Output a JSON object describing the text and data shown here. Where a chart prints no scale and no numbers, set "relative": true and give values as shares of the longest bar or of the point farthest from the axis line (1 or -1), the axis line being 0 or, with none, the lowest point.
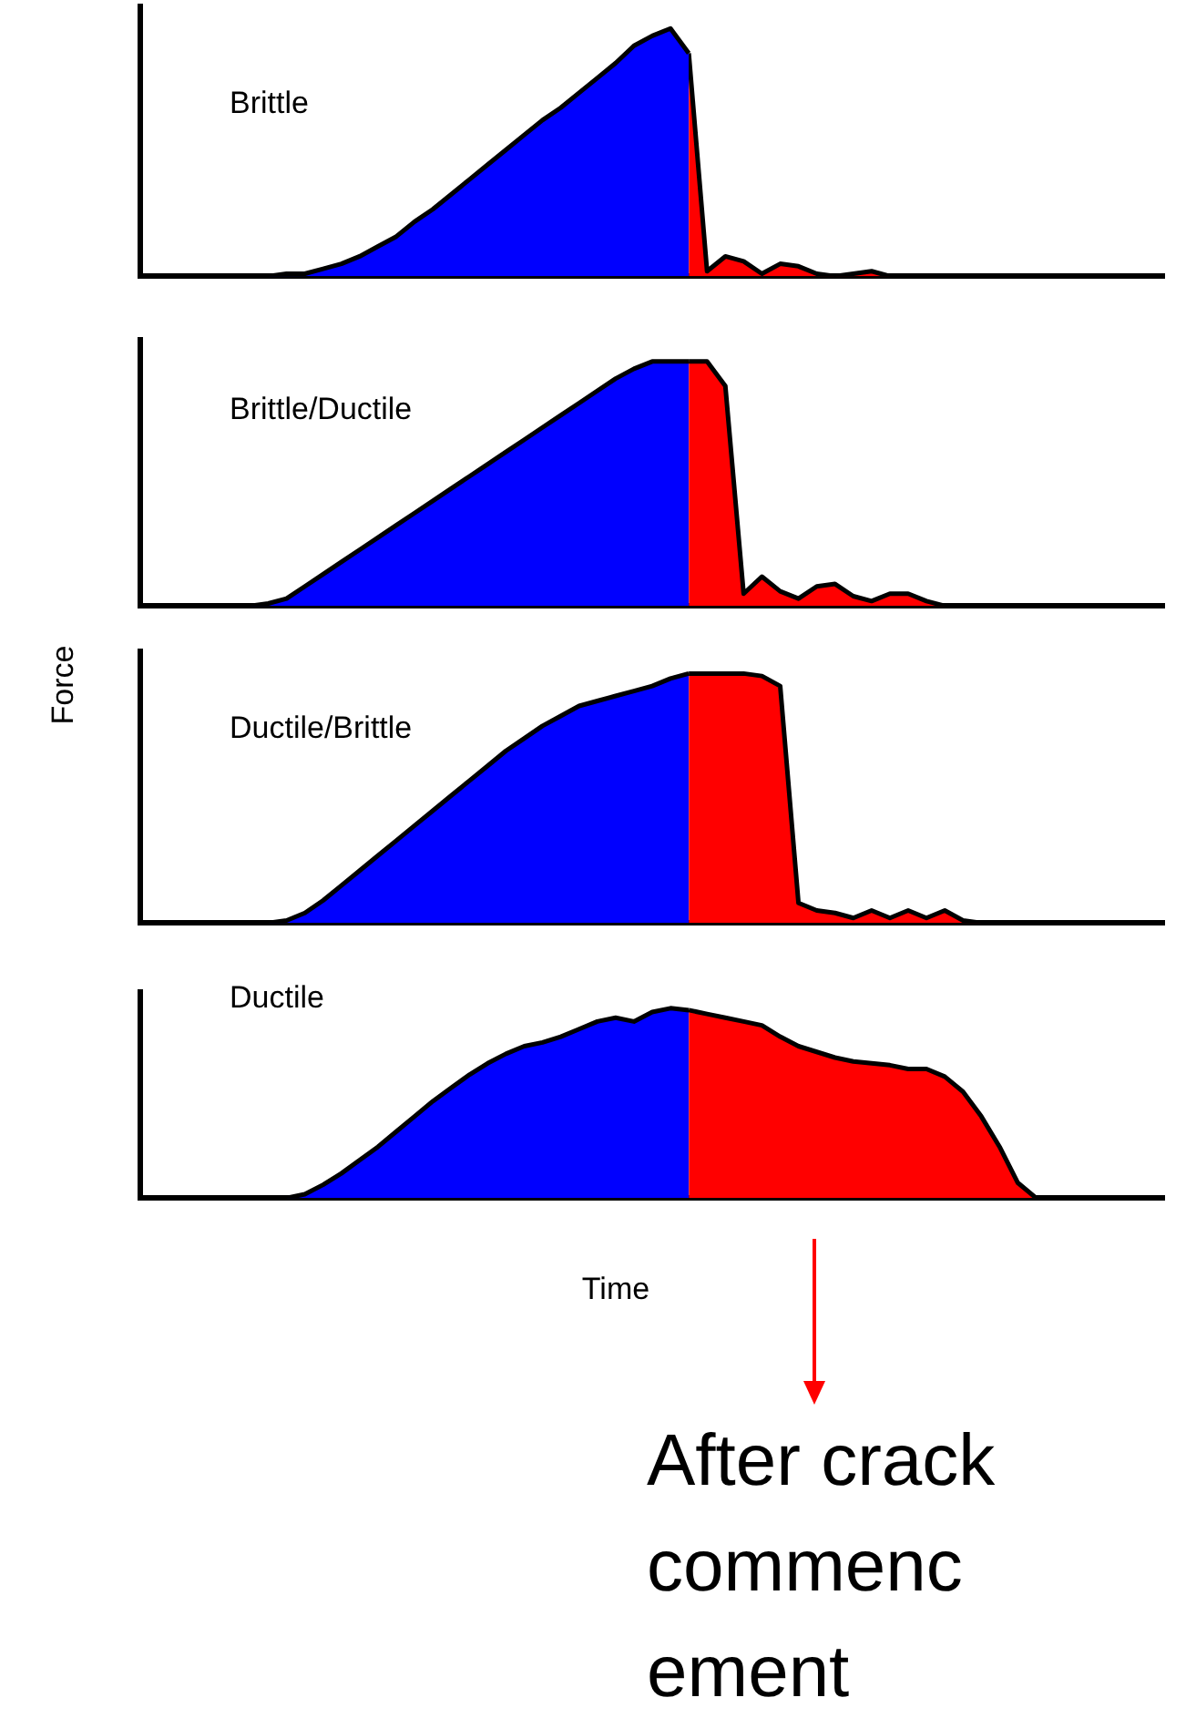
{
  "chart_data": [
    {
      "type": "area",
      "title": "Brittle",
      "relative": true,
      "marker": "none",
      "categories": [
        null,
        null,
        null,
        null,
        null,
        null,
        null,
        null,
        null,
        null,
        null,
        null,
        null,
        null,
        null,
        null,
        null,
        null,
        null,
        null,
        null,
        null,
        null,
        null,
        null,
        null,
        null,
        null,
        null,
        null,
        null,
        null,
        null,
        null,
        null,
        null,
        null,
        null,
        null,
        null,
        null,
        null,
        null,
        null,
        null,
        null,
        null,
        null,
        null,
        null,
        null,
        null,
        null,
        null,
        null,
        null,
        null
      ],
      "series": [
        {
          "color": "#0000ff",
          "values": [
            0,
            0,
            0,
            0,
            0,
            0,
            0,
            0,
            0.01,
            0.01,
            0.03,
            0.05,
            0.08,
            0.12,
            0.16,
            0.22,
            0.27,
            0.33,
            0.39,
            0.45,
            0.51,
            0.57,
            0.63,
            0.68,
            0.74,
            0.8,
            0.86,
            0.93,
            0.97,
            1,
            0.9,
            null,
            null,
            null,
            null,
            null,
            null,
            null,
            null,
            null,
            null,
            null,
            null,
            null,
            null,
            null,
            null,
            null,
            null,
            null,
            null,
            null,
            null,
            null,
            null,
            null,
            null
          ]
        },
        {
          "color": "#ff0000",
          "values": [
            null,
            null,
            null,
            null,
            null,
            null,
            null,
            null,
            null,
            null,
            null,
            null,
            null,
            null,
            null,
            null,
            null,
            null,
            null,
            null,
            null,
            null,
            null,
            null,
            null,
            null,
            null,
            null,
            null,
            null,
            0.9,
            0.02,
            0.08,
            0.06,
            0.01,
            0.05,
            0.04,
            0.01,
            0,
            0.01,
            0.02,
            0,
            0,
            0,
            0,
            0,
            0,
            0,
            0,
            0,
            0,
            0,
            0,
            0,
            0,
            0,
            0
          ]
        }
      ]
    },
    {
      "type": "area",
      "title": "Brittle/Ductile",
      "relative": true,
      "marker": "none",
      "categories": [
        null,
        null,
        null,
        null,
        null,
        null,
        null,
        null,
        null,
        null,
        null,
        null,
        null,
        null,
        null,
        null,
        null,
        null,
        null,
        null,
        null,
        null,
        null,
        null,
        null,
        null,
        null,
        null,
        null,
        null,
        null,
        null,
        null,
        null,
        null,
        null,
        null,
        null,
        null,
        null,
        null,
        null,
        null,
        null,
        null,
        null,
        null,
        null,
        null,
        null,
        null,
        null,
        null,
        null,
        null,
        null,
        null
      ],
      "series": [
        {
          "color": "#0000ff",
          "values": [
            0,
            0,
            0,
            0,
            0,
            0,
            0,
            0.01,
            0.03,
            0.08,
            0.13,
            0.18,
            0.23,
            0.28,
            0.33,
            0.38,
            0.43,
            0.48,
            0.53,
            0.58,
            0.63,
            0.68,
            0.73,
            0.78,
            0.83,
            0.88,
            0.93,
            0.97,
            1,
            1,
            1,
            null,
            null,
            null,
            null,
            null,
            null,
            null,
            null,
            null,
            null,
            null,
            null,
            null,
            null,
            null,
            null,
            null,
            null,
            null,
            null,
            null,
            null,
            null,
            null,
            null,
            null
          ]
        },
        {
          "color": "#ff0000",
          "values": [
            null,
            null,
            null,
            null,
            null,
            null,
            null,
            null,
            null,
            null,
            null,
            null,
            null,
            null,
            null,
            null,
            null,
            null,
            null,
            null,
            null,
            null,
            null,
            null,
            null,
            null,
            null,
            null,
            null,
            null,
            1,
            1,
            0.9,
            0.05,
            0.12,
            0.06,
            0.03,
            0.08,
            0.09,
            0.04,
            0.02,
            0.05,
            0.05,
            0.02,
            0,
            0,
            0,
            0,
            0,
            0,
            0,
            0,
            0,
            0,
            0,
            0,
            0
          ]
        }
      ]
    },
    {
      "type": "area",
      "title": "Ductile/Brittle",
      "ylabel": "Force",
      "relative": true,
      "marker": "none",
      "categories": [
        null,
        null,
        null,
        null,
        null,
        null,
        null,
        null,
        null,
        null,
        null,
        null,
        null,
        null,
        null,
        null,
        null,
        null,
        null,
        null,
        null,
        null,
        null,
        null,
        null,
        null,
        null,
        null,
        null,
        null,
        null,
        null,
        null,
        null,
        null,
        null,
        null,
        null,
        null,
        null,
        null,
        null,
        null,
        null,
        null,
        null,
        null,
        null,
        null,
        null,
        null,
        null,
        null,
        null,
        null,
        null,
        null
      ],
      "series": [
        {
          "color": "#0000ff",
          "values": [
            0,
            0,
            0,
            0,
            0,
            0,
            0,
            0,
            0.01,
            0.04,
            0.09,
            0.15,
            0.21,
            0.27,
            0.33,
            0.39,
            0.45,
            0.51,
            0.57,
            0.63,
            0.69,
            0.74,
            0.79,
            0.83,
            0.87,
            0.89,
            0.91,
            0.93,
            0.95,
            0.98,
            1,
            null,
            null,
            null,
            null,
            null,
            null,
            null,
            null,
            null,
            null,
            null,
            null,
            null,
            null,
            null,
            null,
            null,
            null,
            null,
            null,
            null,
            null,
            null,
            null,
            null,
            null
          ]
        },
        {
          "color": "#ff0000",
          "values": [
            null,
            null,
            null,
            null,
            null,
            null,
            null,
            null,
            null,
            null,
            null,
            null,
            null,
            null,
            null,
            null,
            null,
            null,
            null,
            null,
            null,
            null,
            null,
            null,
            null,
            null,
            null,
            null,
            null,
            null,
            1,
            1,
            1,
            1,
            0.99,
            0.95,
            0.08,
            0.05,
            0.04,
            0.02,
            0.05,
            0.02,
            0.05,
            0.02,
            0.05,
            0.01,
            0,
            0,
            0,
            null,
            null,
            null,
            null,
            null,
            null,
            null,
            null
          ]
        }
      ]
    },
    {
      "type": "area",
      "title": "Ductile",
      "xlabel": "Time",
      "relative": true,
      "marker": "none",
      "annotations": [
        "After crack commenc ement"
      ],
      "categories": [
        null,
        null,
        null,
        null,
        null,
        null,
        null,
        null,
        null,
        null,
        null,
        null,
        null,
        null,
        null,
        null,
        null,
        null,
        null,
        null,
        null,
        null,
        null,
        null,
        null,
        null,
        null,
        null,
        null,
        null,
        null,
        null,
        null,
        null,
        null,
        null,
        null,
        null,
        null,
        null,
        null,
        null,
        null,
        null,
        null,
        null,
        null,
        null,
        null,
        null,
        null,
        null,
        null,
        null,
        null,
        null,
        null
      ],
      "series": [
        {
          "color": "#0000ff",
          "values": [
            0,
            0,
            0,
            0,
            0,
            0,
            0,
            0,
            0,
            0.02,
            0.07,
            0.13,
            0.2,
            0.27,
            0.35,
            0.43,
            0.51,
            0.58,
            0.65,
            0.71,
            0.76,
            0.8,
            0.82,
            0.85,
            0.89,
            0.93,
            0.95,
            0.93,
            0.98,
            1,
            0.99,
            null,
            null,
            null,
            null,
            null,
            null,
            null,
            null,
            null,
            null,
            null,
            null,
            null,
            null,
            null,
            null,
            null,
            null,
            null,
            null,
            null,
            null,
            null,
            null,
            null,
            null
          ]
        },
        {
          "color": "#ff0000",
          "values": [
            null,
            null,
            null,
            null,
            null,
            null,
            null,
            null,
            null,
            null,
            null,
            null,
            null,
            null,
            null,
            null,
            null,
            null,
            null,
            null,
            null,
            null,
            null,
            null,
            null,
            null,
            null,
            null,
            null,
            null,
            0.99,
            0.97,
            0.95,
            0.93,
            0.91,
            0.85,
            0.8,
            0.77,
            0.74,
            0.72,
            0.71,
            0.7,
            0.68,
            0.68,
            0.64,
            0.56,
            0.43,
            0.27,
            0.08,
            0,
            null,
            null,
            null,
            null,
            null,
            null,
            null
          ]
        }
      ]
    }
  ]
}
